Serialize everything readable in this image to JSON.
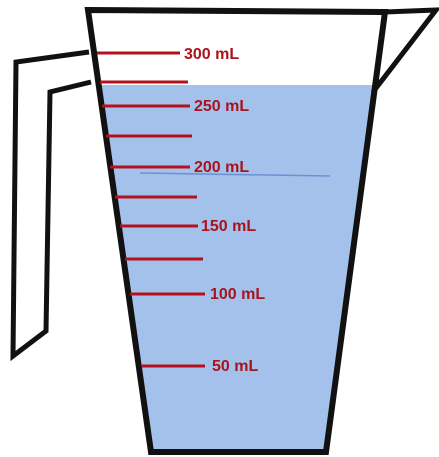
{
  "markings": {
    "labels": [
      "300 mL",
      "250 mL",
      "200 mL",
      "150 mL",
      "100 mL",
      "50 mL"
    ]
  }
}
